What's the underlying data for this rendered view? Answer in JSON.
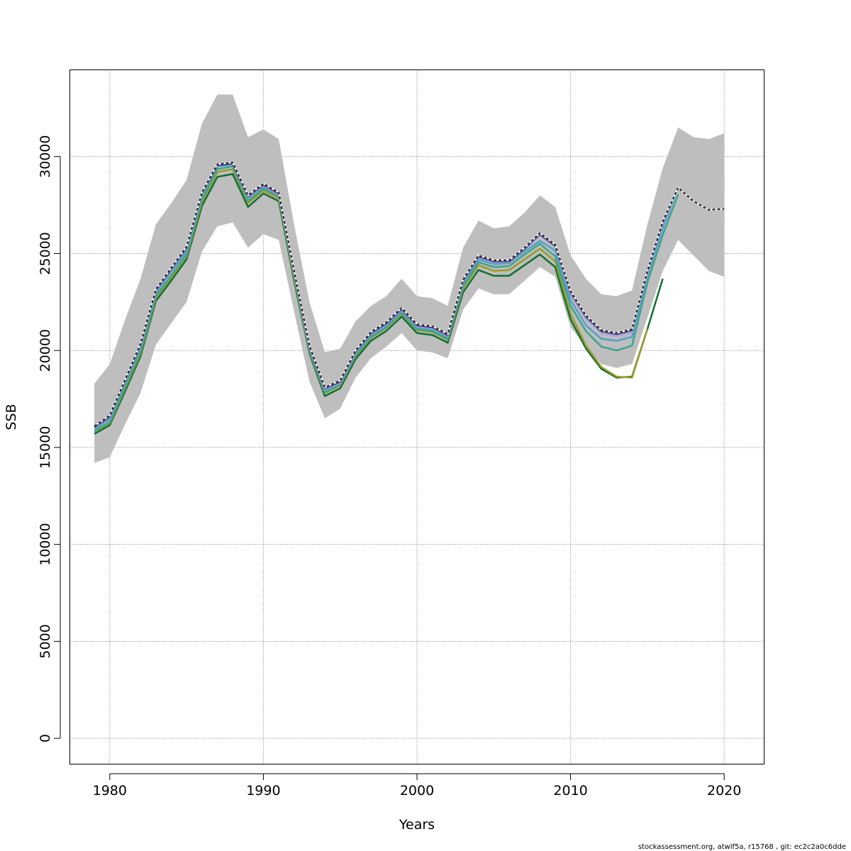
{
  "chart_data": {
    "type": "line",
    "xlabel": "Years",
    "ylabel": "SSB",
    "xlim": [
      1977.4,
      2022.6
    ],
    "ylim": [
      -1330,
      34470
    ],
    "x_ticks": [
      1980,
      1990,
      2000,
      2010,
      2020
    ],
    "y_ticks": [
      0,
      5000,
      10000,
      15000,
      20000,
      25000,
      30000
    ],
    "x_tick_labels": [
      "1980",
      "1990",
      "2000",
      "2010",
      "2020"
    ],
    "y_tick_labels": [
      "0",
      "5000",
      "10000",
      "15000",
      "20000",
      "25000",
      "30000"
    ],
    "grid": true,
    "band": {
      "color": "#bebebe",
      "x": [
        1979,
        1980,
        1981,
        1982,
        1983,
        1984,
        1985,
        1986,
        1987,
        1988,
        1989,
        1990,
        1991,
        1992,
        1993,
        1994,
        1995,
        1996,
        1997,
        1998,
        1999,
        2000,
        2001,
        2002,
        2003,
        2004,
        2005,
        2006,
        2007,
        2008,
        2009,
        2010,
        2011,
        2012,
        2013,
        2014,
        2015,
        2016,
        2017,
        2018,
        2019,
        2020
      ],
      "lower": [
        14200,
        14500,
        16200,
        17800,
        20300,
        21400,
        22500,
        25100,
        26400,
        26600,
        25300,
        26000,
        25700,
        22000,
        18400,
        16500,
        17000,
        18600,
        19600,
        20200,
        20900,
        20000,
        19900,
        19600,
        22100,
        23200,
        22900,
        22900,
        23600,
        24300,
        23800,
        21200,
        20200,
        19300,
        19100,
        19300,
        21700,
        24100,
        25700,
        24900,
        24100,
        23800
      ],
      "upper": [
        18300,
        19300,
        21600,
        23700,
        26500,
        27600,
        28800,
        31700,
        33200,
        33200,
        31000,
        31400,
        30900,
        26500,
        22500,
        19900,
        20100,
        21500,
        22300,
        22800,
        23700,
        22800,
        22700,
        22300,
        25300,
        26700,
        26300,
        26400,
        27100,
        28000,
        27400,
        24900,
        23700,
        22900,
        22800,
        23100,
        26500,
        29400,
        31500,
        31000,
        30900,
        31200
      ]
    },
    "series": [
      {
        "color": "#0f6f2e",
        "dashed": false,
        "x": [
          1979,
          1980,
          1981,
          1982,
          1983,
          1984,
          1985,
          1986,
          1987,
          1988,
          1989,
          1990,
          1991,
          1992,
          1993,
          1994,
          1995,
          1996,
          1997,
          1998,
          1999,
          2000,
          2001,
          2002,
          2003,
          2004,
          2005,
          2006,
          2007,
          2008,
          2009,
          2010,
          2011,
          2012,
          2013,
          2014,
          2015,
          2016
        ],
        "values": [
          15700,
          16150,
          17900,
          19700,
          22550,
          23600,
          24700,
          27450,
          28950,
          29100,
          27400,
          28100,
          27700,
          23600,
          19850,
          17650,
          18050,
          19550,
          20500,
          21000,
          21750,
          20900,
          20800,
          20400,
          23000,
          24150,
          23850,
          23850,
          24400,
          24950,
          24300,
          21600,
          20100,
          19050,
          18600,
          18650,
          21100,
          23700
        ]
      },
      {
        "color": "#9a9a2a",
        "dashed": false,
        "x": [
          1979,
          1980,
          1981,
          1982,
          1983,
          1984,
          1985,
          1986,
          1987,
          1988,
          1989,
          1990,
          1991,
          1992,
          1993,
          1994,
          1995,
          1996,
          1997,
          1998,
          1999,
          2000,
          2001,
          2002,
          2003,
          2004,
          2005,
          2006,
          2007,
          2008,
          2009,
          2010,
          2011,
          2012,
          2013,
          2014,
          2015
        ],
        "values": [
          15800,
          16250,
          18050,
          19850,
          22700,
          23750,
          24850,
          27650,
          29200,
          29350,
          27600,
          28250,
          27850,
          23750,
          19950,
          17800,
          18200,
          19700,
          20650,
          21150,
          21900,
          21050,
          20950,
          20550,
          23200,
          24400,
          24100,
          24150,
          24700,
          25250,
          24600,
          21900,
          20250,
          19150,
          18650,
          18600,
          21100
        ]
      },
      {
        "color": "#3aa68a",
        "dashed": false,
        "x": [
          1979,
          1980,
          1981,
          1982,
          1983,
          1984,
          1985,
          1986,
          1987,
          1988,
          1989,
          1990,
          1991,
          1992,
          1993,
          1994,
          1995,
          1996,
          1997,
          1998,
          1999,
          2000,
          2001,
          2002,
          2003,
          2004,
          2005,
          2006,
          2007,
          2008,
          2009,
          2010,
          2011,
          2012,
          2013,
          2014,
          2015,
          2016,
          2017
        ],
        "values": [
          15850,
          16300,
          18150,
          19950,
          22800,
          23850,
          24950,
          27800,
          29350,
          29500,
          27700,
          28350,
          27950,
          23850,
          20000,
          17850,
          18250,
          19750,
          20700,
          21200,
          21950,
          21100,
          21000,
          20600,
          23300,
          24550,
          24300,
          24350,
          24950,
          25500,
          24850,
          22300,
          21000,
          20200,
          20000,
          20250,
          23500,
          25950,
          28050
        ]
      },
      {
        "color": "#4da0d0",
        "dashed": false,
        "x": [
          1979,
          1980,
          1981,
          1982,
          1983,
          1984,
          1985,
          1986,
          1987,
          1988,
          1989,
          1990,
          1991,
          1992,
          1993,
          1994,
          1995,
          1996,
          1997,
          1998,
          1999,
          2000,
          2001,
          2002,
          2003,
          2004,
          2005,
          2006,
          2007,
          2008,
          2009,
          2010,
          2011,
          2012,
          2013,
          2014,
          2015,
          2016,
          2017,
          2018
        ],
        "values": [
          15950,
          16450,
          18300,
          20150,
          22950,
          24050,
          25100,
          27950,
          29500,
          29600,
          27850,
          28450,
          28000,
          23950,
          20100,
          17950,
          18300,
          19850,
          20800,
          21300,
          22050,
          21200,
          21100,
          20700,
          23450,
          24700,
          24450,
          24500,
          25100,
          25650,
          25150,
          22600,
          21300,
          20600,
          20500,
          20700,
          23800,
          26300,
          28400,
          27700
        ]
      },
      {
        "color": "#a8a0d8",
        "dashed": false,
        "x": [
          1979,
          1980,
          1981,
          1982,
          1983,
          1984,
          1985,
          1986,
          1987,
          1988,
          1989,
          1990,
          1991,
          1992,
          1993,
          1994,
          1995,
          1996,
          1997,
          1998,
          1999,
          2000,
          2001,
          2002,
          2003,
          2004,
          2005,
          2006,
          2007,
          2008,
          2009,
          2010,
          2011,
          2012,
          2013,
          2014,
          2015,
          2016,
          2017,
          2018,
          2019,
          2020
        ],
        "values": [
          16000,
          16550,
          18400,
          20250,
          23050,
          24150,
          25250,
          28050,
          29550,
          29650,
          27900,
          28500,
          28050,
          24000,
          20150,
          18000,
          18350,
          19900,
          20850,
          21350,
          22100,
          21250,
          21150,
          20750,
          23550,
          24800,
          24550,
          24550,
          25200,
          25950,
          25350,
          22900,
          21650,
          20900,
          20750,
          20950,
          23950,
          26500,
          28400,
          27700,
          27250,
          27300
        ]
      },
      {
        "color": "#2b1d6e",
        "dashed": false,
        "x": [
          1979,
          1980,
          1981,
          1982,
          1983,
          1984,
          1985,
          1986,
          1987,
          1988,
          1989,
          1990,
          1991,
          1992,
          1993,
          1994,
          1995,
          1996,
          1997,
          1998,
          1999,
          2000,
          2001,
          2002,
          2003,
          2004,
          2005,
          2006,
          2007,
          2008,
          2009,
          2010,
          2011,
          2012,
          2013,
          2014,
          2015,
          2016,
          2017,
          2018,
          2019,
          2020
        ],
        "values": [
          16050,
          16600,
          18450,
          20300,
          23100,
          24200,
          25300,
          28100,
          29550,
          29650,
          27950,
          28550,
          28100,
          24050,
          20200,
          18050,
          18400,
          19950,
          20900,
          21400,
          22150,
          21300,
          21200,
          20800,
          23600,
          24850,
          24600,
          24600,
          25250,
          26000,
          25400,
          23000,
          21750,
          21000,
          20850,
          21050,
          24050,
          26600,
          28400,
          27700,
          27250,
          27300
        ]
      },
      {
        "color": "#222222",
        "dashed": true,
        "x": [
          1979,
          1980,
          1981,
          1982,
          1983,
          1984,
          1985,
          1986,
          1987,
          1988,
          1989,
          1990,
          1991,
          1992,
          1993,
          1994,
          1995,
          1996,
          1997,
          1998,
          1999,
          2000,
          2001,
          2002,
          2003,
          2004,
          2005,
          2006,
          2007,
          2008,
          2009,
          2010,
          2011,
          2012,
          2013,
          2014,
          2015,
          2016,
          2017,
          2018,
          2019,
          2020
        ],
        "values": [
          16100,
          16650,
          18500,
          20350,
          23150,
          24250,
          25350,
          28150,
          29600,
          29700,
          28000,
          28600,
          28150,
          24100,
          20250,
          18100,
          18450,
          20000,
          20950,
          21450,
          22200,
          21350,
          21250,
          20850,
          23650,
          24900,
          24650,
          24650,
          25300,
          26050,
          25450,
          23050,
          21800,
          21050,
          20900,
          21100,
          24100,
          26650,
          28400,
          27700,
          27250,
          27300
        ]
      }
    ]
  },
  "footer": "stockassessment.org, atwlf5a, r15768 , git: ec2c2a0c6dde"
}
